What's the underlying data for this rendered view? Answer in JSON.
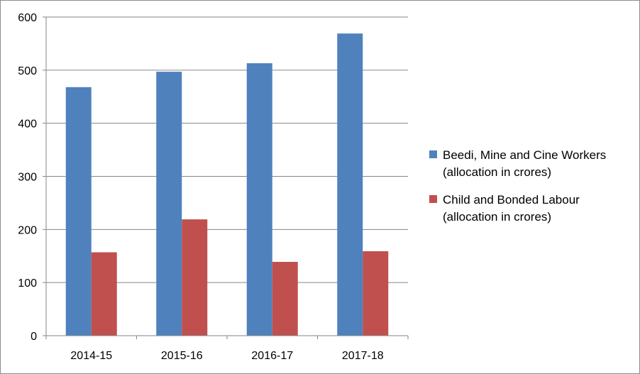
{
  "chart_data": {
    "type": "bar",
    "title": "",
    "xlabel": "",
    "ylabel": "",
    "categories": [
      "2014-15",
      "2015-16",
      "2016-17",
      "2017-18"
    ],
    "series": [
      {
        "name": "Beedi, Mine and Cine Workers (allocation in crores)",
        "name_lines": [
          "Beedi, Mine and Cine Workers",
          "(allocation in crores)"
        ],
        "color": "#4f81bd",
        "values": [
          468,
          497,
          513,
          569
        ]
      },
      {
        "name": "Child and Bonded Labour (allocation in crores)",
        "name_lines": [
          "Child and Bonded Labour",
          "(allocation in crores)"
        ],
        "color": "#c0504d",
        "values": [
          157,
          219,
          139,
          159
        ]
      }
    ],
    "ylim": [
      0,
      600
    ],
    "yticks": [
      0,
      100,
      200,
      300,
      400,
      500,
      600
    ],
    "grid": true,
    "legend_position": "right"
  }
}
